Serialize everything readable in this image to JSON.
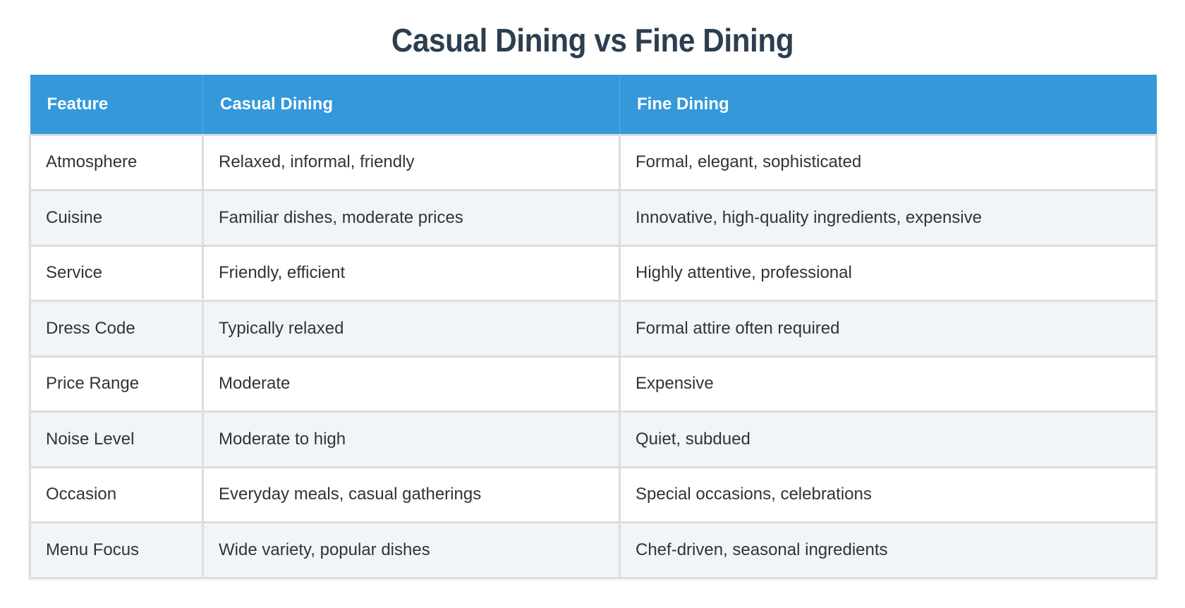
{
  "title": "Casual Dining vs Fine Dining",
  "colors": {
    "header_bg": "#3498db",
    "title": "#2c3e50",
    "row_alt_bg": "#f1f4f8",
    "border": "#dddddd",
    "text": "#333333"
  },
  "table": {
    "headers": [
      "Feature",
      "Casual Dining",
      "Fine Dining"
    ],
    "rows": [
      [
        "Atmosphere",
        "Relaxed, informal, friendly",
        "Formal, elegant, sophisticated"
      ],
      [
        "Cuisine",
        "Familiar dishes, moderate prices",
        "Innovative, high-quality ingredients, expensive"
      ],
      [
        "Service",
        "Friendly, efficient",
        "Highly attentive, professional"
      ],
      [
        "Dress Code",
        "Typically relaxed",
        "Formal attire often required"
      ],
      [
        "Price Range",
        "Moderate",
        "Expensive"
      ],
      [
        "Noise Level",
        "Moderate to high",
        "Quiet, subdued"
      ],
      [
        "Occasion",
        "Everyday meals, casual gatherings",
        "Special occasions, celebrations"
      ],
      [
        "Menu Focus",
        "Wide variety, popular dishes",
        "Chef-driven, seasonal ingredients"
      ]
    ]
  }
}
